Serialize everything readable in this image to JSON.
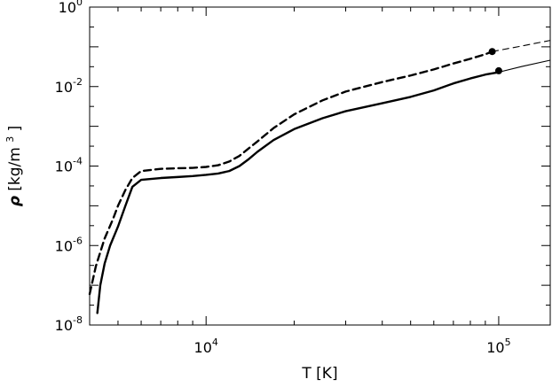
{
  "chart_data": {
    "type": "line",
    "title": "",
    "xlabel": "T [K]",
    "ylabel_symbol": "ρ",
    "ylabel_unit_open": "[kg/m",
    "ylabel_unit_exp": "3",
    "ylabel_unit_close": "]",
    "xscale": "log",
    "yscale": "log",
    "xlim": [
      4000,
      150000
    ],
    "ylim": [
      1e-08,
      1
    ],
    "grid": false,
    "legend": "none",
    "x_major_ticks": [
      {
        "value": 10000,
        "base": "10",
        "exp": "4"
      },
      {
        "value": 100000,
        "base": "10",
        "exp": "5"
      }
    ],
    "y_major_ticks": [
      {
        "value": 1e-08,
        "base": "10",
        "exp": "-8"
      },
      {
        "value": 1e-06,
        "base": "10",
        "exp": "-6"
      },
      {
        "value": 0.0001,
        "base": "10",
        "exp": "-4"
      },
      {
        "value": 0.01,
        "base": "10",
        "exp": "-2"
      },
      {
        "value": 1,
        "base": "10",
        "exp": "0"
      }
    ],
    "series": [
      {
        "style": "solid",
        "color": "#000000",
        "x": [
          4250,
          4350,
          4500,
          4700,
          5000,
          5300,
          5600,
          6000,
          7000,
          8000,
          9000,
          10000,
          11000,
          12000,
          13000,
          14000,
          15000,
          17000,
          20000,
          25000,
          30000,
          40000,
          50000,
          60000,
          70000,
          80000,
          90000,
          100000
        ],
        "y": [
          2e-08,
          1e-07,
          3.5e-07,
          1e-06,
          3e-06,
          1e-05,
          3e-05,
          4.5e-05,
          5e-05,
          5.3e-05,
          5.6e-05,
          6e-05,
          6.5e-05,
          7.5e-05,
          0.0001,
          0.00015,
          0.00023,
          0.00045,
          0.00085,
          0.0016,
          0.0024,
          0.0038,
          0.0055,
          0.008,
          0.012,
          0.016,
          0.02,
          0.023
        ]
      },
      {
        "style": "thin-solid",
        "color": "#000000",
        "x": [
          100000,
          120000,
          150000
        ],
        "y": [
          0.023,
          0.032,
          0.046
        ]
      },
      {
        "style": "dashed",
        "color": "#000000",
        "x": [
          4000,
          4200,
          4500,
          4800,
          5000,
          5300,
          5600,
          6000,
          7000,
          8000,
          9000,
          10000,
          11000,
          12000,
          13000,
          14000,
          15000,
          17000,
          20000,
          25000,
          30000,
          40000,
          50000,
          60000,
          70000,
          80000,
          90000,
          95000
        ],
        "y": [
          6e-08,
          3e-07,
          1.5e-06,
          4.5e-06,
          1e-05,
          2.5e-05,
          5e-05,
          7.5e-05,
          8.5e-05,
          8.8e-05,
          9e-05,
          9.5e-05,
          0.000105,
          0.00013,
          0.00018,
          0.00028,
          0.00042,
          0.0009,
          0.002,
          0.0045,
          0.0075,
          0.013,
          0.019,
          0.027,
          0.038,
          0.05,
          0.065,
          0.076
        ]
      },
      {
        "style": "thin-dashed",
        "color": "#000000",
        "x": [
          95000,
          120000,
          150000
        ],
        "y": [
          0.076,
          0.105,
          0.145
        ]
      }
    ],
    "markers": [
      {
        "x": 100000,
        "y": 0.025
      },
      {
        "x": 95000,
        "y": 0.076
      }
    ]
  }
}
